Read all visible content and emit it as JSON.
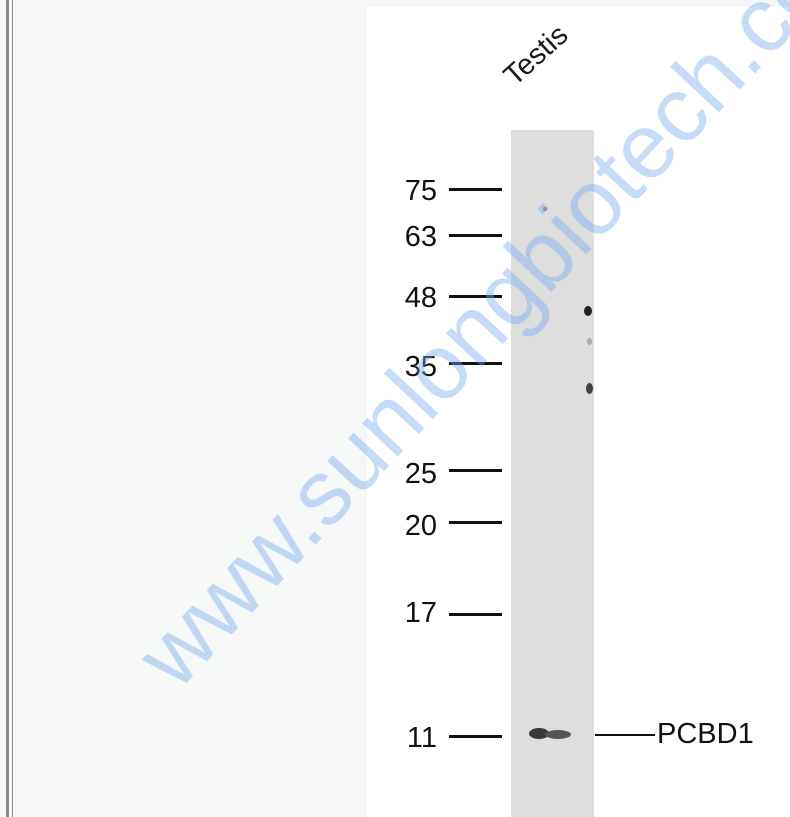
{
  "lane_label": "Testis",
  "markers": [
    {
      "label": "75"
    },
    {
      "label": "63"
    },
    {
      "label": "48"
    },
    {
      "label": "35"
    },
    {
      "label": "25"
    },
    {
      "label": "20"
    },
    {
      "label": "17"
    },
    {
      "label": "11"
    }
  ],
  "target": {
    "label": "PCBD1"
  },
  "watermark": "www.sunlongbiotech.com"
}
